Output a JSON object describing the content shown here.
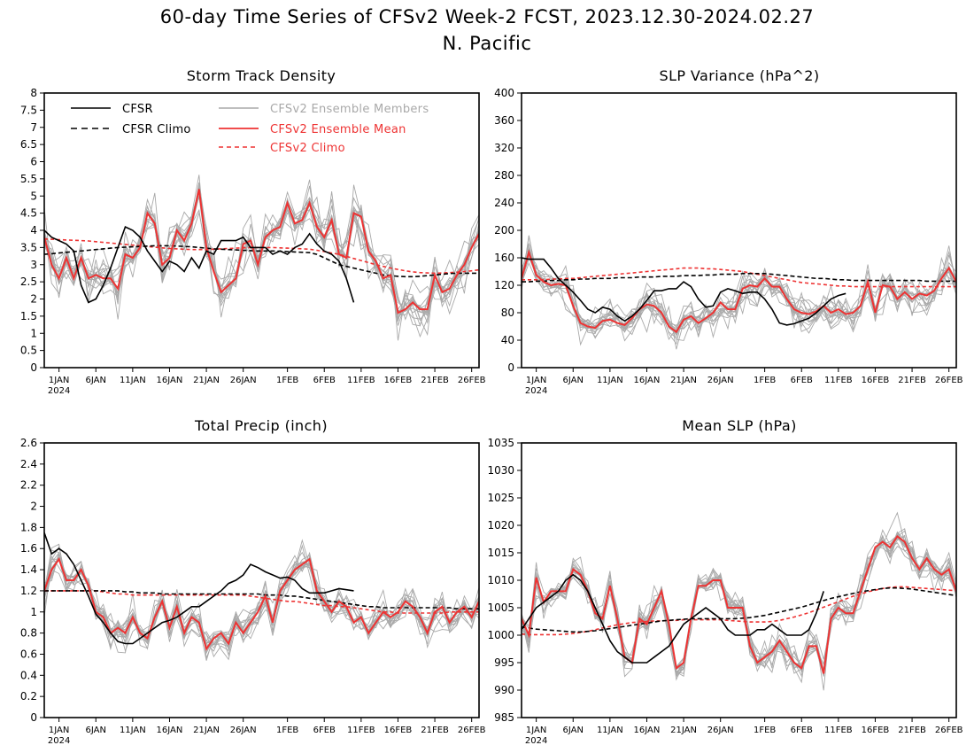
{
  "figure": {
    "title_line1": "60-day Time Series of CFSv2 Week-2 FCST, 2023.12.30-2024.02.27",
    "title_line2": "N. Pacific"
  },
  "legend": {
    "cfsr": "CFSR",
    "cfsr_climo": "CFSR Climo",
    "members": "CFSv2 Ensemble Members",
    "ens_mean": "CFSv2 Ensemble Mean",
    "cfsv2_climo": "CFSv2 Climo"
  },
  "colors": {
    "cfsr": "#000000",
    "members": "#a9a9a9",
    "ens_mean": "#ee3333",
    "cfsv2_climo": "#ee3333"
  },
  "x_axis": {
    "labels": [
      "1JAN",
      "6JAN",
      "11JAN",
      "16JAN",
      "21JAN",
      "26JAN",
      "1FEB",
      "6FEB",
      "11FEB",
      "16FEB",
      "21FEB",
      "26FEB"
    ],
    "label_days": [
      2,
      7,
      12,
      17,
      22,
      27,
      33,
      38,
      43,
      48,
      53,
      58
    ],
    "year_label": "2024",
    "days": 60
  },
  "chart_data": [
    {
      "type": "line",
      "title": "Storm Track Density",
      "ylim": [
        0,
        8
      ],
      "yticks": [
        "0",
        "0.5",
        "1",
        "1.5",
        "2",
        "2.5",
        "3",
        "3.5",
        "4",
        "4.5",
        "5",
        "5.5",
        "6",
        "6.5",
        "7",
        "7.5",
        "8"
      ],
      "legend_placement": "top-left",
      "series": [
        {
          "name": "CFSR",
          "values": [
            4.0,
            3.8,
            3.7,
            3.6,
            3.4,
            2.4,
            1.9,
            2.0,
            2.4,
            2.9,
            3.5,
            4.1,
            4.0,
            3.8,
            3.4,
            3.1,
            2.8,
            3.1,
            3.0,
            2.8,
            3.2,
            2.9,
            3.4,
            3.3,
            3.7,
            3.7,
            3.7,
            3.8,
            3.5,
            3.5,
            3.5,
            3.3,
            3.4,
            3.3,
            3.5,
            3.6,
            3.9,
            3.6,
            3.4,
            3.3,
            3.1,
            2.6,
            1.9
          ]
        },
        {
          "name": "CFSR Climo",
          "values": [
            3.3,
            3.32,
            3.34,
            3.36,
            3.38,
            3.4,
            3.42,
            3.44,
            3.46,
            3.48,
            3.5,
            3.51,
            3.52,
            3.53,
            3.54,
            3.55,
            3.55,
            3.55,
            3.54,
            3.53,
            3.52,
            3.5,
            3.48,
            3.46,
            3.45,
            3.44,
            3.43,
            3.42,
            3.41,
            3.4,
            3.4,
            3.4,
            3.39,
            3.38,
            3.37,
            3.36,
            3.35,
            3.3,
            3.2,
            3.1,
            3.0,
            2.95,
            2.9,
            2.85,
            2.8,
            2.75,
            2.7,
            2.68,
            2.66,
            2.65,
            2.65,
            2.66,
            2.68,
            2.7,
            2.72,
            2.74,
            2.75,
            2.75,
            2.75,
            2.75
          ]
        },
        {
          "name": "CFSv2 Ensemble Mean",
          "values": [
            3.8,
            3.0,
            2.6,
            3.2,
            2.6,
            3.2,
            2.6,
            2.7,
            2.6,
            2.6,
            2.3,
            3.3,
            3.2,
            3.5,
            4.5,
            4.2,
            3.0,
            3.2,
            4.0,
            3.7,
            4.2,
            5.2,
            3.5,
            2.8,
            2.2,
            2.4,
            2.6,
            3.6,
            3.7,
            3.0,
            3.8,
            4.0,
            4.1,
            4.8,
            4.2,
            4.3,
            4.8,
            4.1,
            3.8,
            4.3,
            3.3,
            3.2,
            4.5,
            4.4,
            3.4,
            3.1,
            2.6,
            2.7,
            1.6,
            1.7,
            1.9,
            1.7,
            1.7,
            2.7,
            2.2,
            2.3,
            2.7,
            3.0,
            3.5,
            3.9
          ]
        },
        {
          "name": "CFSv2 Climo",
          "values": [
            3.75,
            3.74,
            3.73,
            3.72,
            3.71,
            3.7,
            3.69,
            3.67,
            3.65,
            3.63,
            3.61,
            3.59,
            3.57,
            3.55,
            3.53,
            3.51,
            3.49,
            3.47,
            3.46,
            3.45,
            3.44,
            3.44,
            3.44,
            3.45,
            3.46,
            3.47,
            3.48,
            3.49,
            3.5,
            3.5,
            3.5,
            3.5,
            3.49,
            3.48,
            3.47,
            3.46,
            3.45,
            3.42,
            3.38,
            3.34,
            3.3,
            3.24,
            3.18,
            3.12,
            3.06,
            3.0,
            2.95,
            2.9,
            2.86,
            2.82,
            2.79,
            2.77,
            2.76,
            2.75,
            2.76,
            2.77,
            2.78,
            2.8,
            2.82,
            2.85
          ]
        }
      ]
    },
    {
      "type": "line",
      "title": "SLP Variance (hPa^2)",
      "ylim": [
        0,
        400
      ],
      "yticks": [
        "0",
        "40",
        "80",
        "120",
        "160",
        "200",
        "240",
        "280",
        "320",
        "360",
        "400"
      ],
      "series": [
        {
          "name": "CFSR",
          "values": [
            160,
            158,
            158,
            158,
            145,
            130,
            120,
            110,
            98,
            85,
            80,
            88,
            85,
            75,
            68,
            75,
            85,
            98,
            112,
            112,
            115,
            115,
            125,
            118,
            100,
            88,
            90,
            110,
            115,
            112,
            108,
            110,
            110,
            100,
            85,
            65,
            62,
            64,
            68,
            72,
            80,
            90,
            100,
            105,
            108
          ]
        },
        {
          "name": "CFSR Climo",
          "values": [
            125,
            125,
            126,
            126,
            127,
            127,
            128,
            128,
            129,
            129,
            130,
            130,
            130,
            131,
            131,
            131,
            132,
            132,
            132,
            133,
            133,
            133,
            134,
            134,
            134,
            135,
            135,
            136,
            136,
            136,
            137,
            137,
            137,
            137,
            136,
            135,
            134,
            133,
            132,
            131,
            130,
            130,
            129,
            128,
            128,
            127,
            127,
            127,
            127,
            127,
            127,
            127,
            127,
            127,
            127,
            126,
            126,
            126,
            126,
            126
          ]
        },
        {
          "name": "CFSv2 Ensemble Mean",
          "values": [
            130,
            168,
            135,
            125,
            120,
            122,
            120,
            90,
            65,
            60,
            58,
            68,
            70,
            65,
            62,
            72,
            85,
            92,
            90,
            80,
            60,
            52,
            70,
            75,
            65,
            72,
            80,
            95,
            85,
            85,
            115,
            120,
            118,
            130,
            118,
            118,
            100,
            85,
            80,
            78,
            82,
            90,
            80,
            85,
            78,
            80,
            90,
            125,
            80,
            120,
            118,
            100,
            110,
            100,
            108,
            105,
            112,
            130,
            145,
            125
          ]
        },
        {
          "name": "CFSv2 Climo",
          "values": [
            128,
            128,
            128,
            128,
            129,
            129,
            130,
            130,
            131,
            132,
            133,
            134,
            135,
            136,
            137,
            138,
            139,
            140,
            141,
            142,
            143,
            144,
            145,
            145,
            145,
            144,
            144,
            143,
            142,
            141,
            140,
            138,
            136,
            134,
            132,
            130,
            128,
            126,
            124,
            123,
            122,
            121,
            120,
            119,
            119,
            118,
            118,
            118,
            118,
            118,
            118,
            118,
            118,
            118,
            118,
            118,
            118,
            118,
            118,
            118
          ]
        }
      ]
    },
    {
      "type": "line",
      "title": "Total Precip (inch)",
      "ylim": [
        0,
        2.6
      ],
      "yticks": [
        "0",
        "0.2",
        "0.4",
        "0.6",
        "0.8",
        "1",
        "1.2",
        "1.4",
        "1.6",
        "1.8",
        "2",
        "2.2",
        "2.4",
        "2.6"
      ],
      "series": [
        {
          "name": "CFSR",
          "values": [
            1.75,
            1.55,
            1.6,
            1.55,
            1.45,
            1.3,
            1.15,
            0.98,
            0.9,
            0.8,
            0.72,
            0.7,
            0.7,
            0.75,
            0.8,
            0.85,
            0.9,
            0.92,
            0.95,
            1.0,
            1.05,
            1.05,
            1.1,
            1.15,
            1.2,
            1.27,
            1.3,
            1.35,
            1.45,
            1.42,
            1.38,
            1.35,
            1.32,
            1.33,
            1.3,
            1.22,
            1.18,
            1.18,
            1.18,
            1.2,
            1.22,
            1.21,
            1.2
          ]
        },
        {
          "name": "CFSR Climo",
          "values": [
            1.2,
            1.2,
            1.2,
            1.2,
            1.2,
            1.2,
            1.2,
            1.2,
            1.2,
            1.2,
            1.2,
            1.19,
            1.19,
            1.18,
            1.18,
            1.18,
            1.17,
            1.17,
            1.17,
            1.17,
            1.17,
            1.17,
            1.17,
            1.17,
            1.17,
            1.17,
            1.17,
            1.17,
            1.17,
            1.17,
            1.16,
            1.16,
            1.16,
            1.15,
            1.15,
            1.14,
            1.13,
            1.12,
            1.11,
            1.1,
            1.09,
            1.08,
            1.07,
            1.06,
            1.05,
            1.05,
            1.04,
            1.04,
            1.04,
            1.04,
            1.04,
            1.04,
            1.04,
            1.04,
            1.04,
            1.04,
            1.03,
            1.03,
            1.03,
            1.03
          ]
        },
        {
          "name": "CFSv2 Ensemble Mean",
          "values": [
            1.2,
            1.4,
            1.5,
            1.3,
            1.3,
            1.4,
            1.25,
            1.0,
            0.95,
            0.8,
            0.85,
            0.8,
            0.95,
            0.8,
            0.75,
            0.95,
            1.1,
            0.85,
            1.05,
            0.8,
            0.95,
            0.9,
            0.65,
            0.75,
            0.8,
            0.7,
            0.9,
            0.8,
            0.9,
            1.0,
            1.15,
            0.9,
            1.2,
            1.3,
            1.4,
            1.45,
            1.5,
            1.2,
            1.1,
            1.0,
            1.1,
            1.05,
            0.9,
            0.95,
            0.8,
            0.9,
            1.0,
            0.95,
            1.0,
            1.1,
            1.05,
            0.95,
            0.8,
            1.0,
            1.05,
            0.9,
            1.0,
            1.05,
            0.95,
            1.1
          ]
        },
        {
          "name": "CFSv2 Climo",
          "values": [
            1.2,
            1.2,
            1.2,
            1.2,
            1.2,
            1.2,
            1.2,
            1.2,
            1.19,
            1.18,
            1.17,
            1.17,
            1.16,
            1.16,
            1.16,
            1.16,
            1.16,
            1.16,
            1.16,
            1.16,
            1.16,
            1.16,
            1.16,
            1.16,
            1.16,
            1.16,
            1.16,
            1.16,
            1.15,
            1.14,
            1.13,
            1.12,
            1.11,
            1.1,
            1.1,
            1.09,
            1.08,
            1.07,
            1.06,
            1.06,
            1.05,
            1.05,
            1.04,
            1.03,
            1.02,
            1.01,
            1.0,
            1.0,
            0.99,
            0.99,
            0.99,
            0.99,
            0.99,
            0.99,
            0.99,
            1.0,
            1.0,
            1.0,
            1.0,
            1.0
          ]
        }
      ]
    },
    {
      "type": "line",
      "title": "Mean SLP (hPa)",
      "ylim": [
        985,
        1035
      ],
      "yticks": [
        "985",
        "990",
        "995",
        "1000",
        "1005",
        "1010",
        "1015",
        "1020",
        "1025",
        "1030",
        "1035"
      ],
      "series": [
        {
          "name": "CFSR",
          "values": [
            1001,
            1003,
            1005,
            1006,
            1007,
            1008,
            1010,
            1011,
            1010,
            1008,
            1005,
            1002,
            999,
            997,
            996,
            995,
            995,
            995,
            996,
            997,
            998,
            1000,
            1002,
            1003,
            1004,
            1005,
            1004,
            1003,
            1001,
            1000,
            1000,
            1000,
            1001,
            1001,
            1002,
            1001,
            1000,
            1000,
            1000,
            1001,
            1004,
            1008
          ]
        },
        {
          "name": "CFSR Climo",
          "values": [
            1001.5,
            1001.3,
            1001.1,
            1001,
            1000.9,
            1000.8,
            1000.7,
            1000.6,
            1000.6,
            1000.7,
            1000.8,
            1001,
            1001.2,
            1001.4,
            1001.6,
            1001.8,
            1002,
            1002.2,
            1002.4,
            1002.6,
            1002.7,
            1002.8,
            1002.9,
            1003,
            1003,
            1003,
            1003,
            1003,
            1003,
            1003,
            1003.1,
            1003.2,
            1003.4,
            1003.6,
            1003.9,
            1004.2,
            1004.5,
            1004.8,
            1005.1,
            1005.5,
            1005.9,
            1006.3,
            1006.7,
            1007,
            1007.3,
            1007.6,
            1007.9,
            1008.1,
            1008.3,
            1008.5,
            1008.6,
            1008.6,
            1008.5,
            1008.4,
            1008.2,
            1008,
            1007.8,
            1007.6,
            1007.4,
            1007.2
          ]
        },
        {
          "name": "CFSv2 Ensemble Mean",
          "values": [
            1003,
            1000,
            1010.5,
            1006,
            1008,
            1008,
            1008,
            1012,
            1011,
            1008,
            1004,
            1003,
            1009,
            1003,
            996,
            995,
            1003,
            1002,
            1005,
            1008,
            1002,
            994,
            995,
            1003,
            1009,
            1009,
            1010,
            1010,
            1005,
            1005,
            1005,
            998,
            995,
            996,
            997,
            999,
            997,
            995,
            994,
            998,
            998,
            993,
            1003,
            1005,
            1004,
            1004,
            1008,
            1012,
            1016,
            1017,
            1016,
            1018,
            1017,
            1014,
            1012,
            1014,
            1012,
            1011,
            1012,
            1008
          ]
        },
        {
          "name": "CFSv2 Climo",
          "values": [
            1000.2,
            1000.1,
            1000.1,
            1000.1,
            1000.1,
            1000.1,
            1000.2,
            1000.3,
            1000.5,
            1000.7,
            1001,
            1001.3,
            1001.6,
            1001.9,
            1002.1,
            1002.3,
            1002.4,
            1002.5,
            1002.6,
            1002.6,
            1002.7,
            1002.7,
            1002.8,
            1002.8,
            1002.8,
            1002.8,
            1002.8,
            1002.8,
            1002.7,
            1002.6,
            1002.5,
            1002.4,
            1002.4,
            1002.4,
            1002.5,
            1002.7,
            1003,
            1003.3,
            1003.7,
            1004.1,
            1004.6,
            1005.1,
            1005.6,
            1006.1,
            1006.6,
            1007.1,
            1007.5,
            1007.9,
            1008.2,
            1008.5,
            1008.7,
            1008.8,
            1008.8,
            1008.7,
            1008.6,
            1008.5,
            1008.4,
            1008.3,
            1008.2,
            1008.1
          ]
        }
      ]
    }
  ]
}
